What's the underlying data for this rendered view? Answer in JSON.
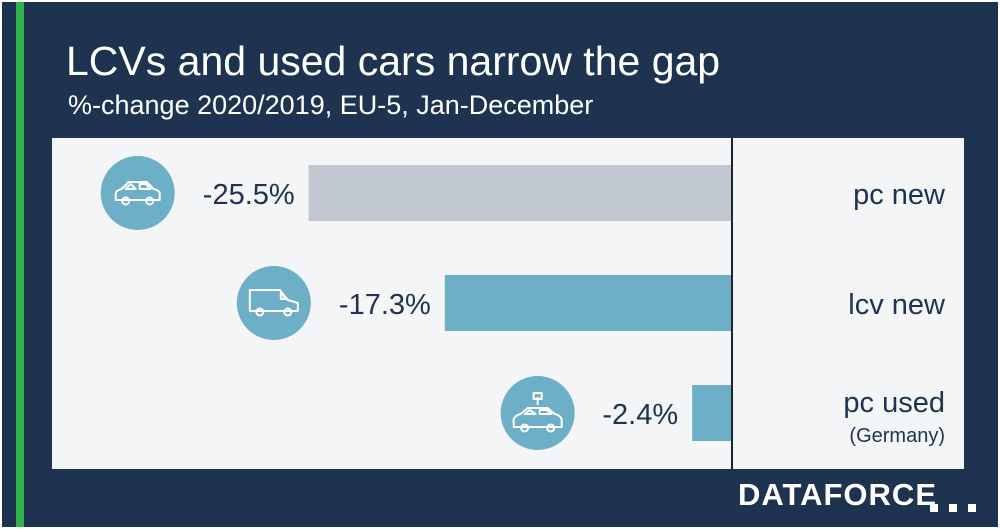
{
  "title": "LCVs and used cars narrow the gap",
  "subtitle": "%-change 2020/2019, EU-5, Jan-December",
  "logo": "DATAFORCE",
  "colors": {
    "background": "#1d3350",
    "accent_bar": "#2fb44a",
    "panel": "#f4f5f6",
    "bar_pc_new": "#c1c7d0",
    "bar_lcv": "#6cafc7",
    "icon_circle": "#6cafc7",
    "text_dark": "#1d3350"
  },
  "chart_data": {
    "type": "bar",
    "orientation": "horizontal",
    "categories": [
      "pc new",
      "lcv new",
      "pc used"
    ],
    "category_notes": [
      "",
      "",
      "(Germany)"
    ],
    "values": [
      -25.5,
      -17.3,
      -2.4
    ],
    "value_labels": [
      "-25.5%",
      "-17.3%",
      "-2.4%"
    ],
    "icons": [
      "car-icon",
      "van-icon",
      "used-car-icon"
    ],
    "bar_colors": [
      "#c1c7d0",
      "#6cafc7",
      "#6cafc7"
    ],
    "xlim": [
      -30,
      0
    ],
    "title": "LCVs and used cars narrow the gap",
    "subtitle": "%-change 2020/2019, EU-5, Jan-December",
    "legend": "none",
    "grid": false
  }
}
